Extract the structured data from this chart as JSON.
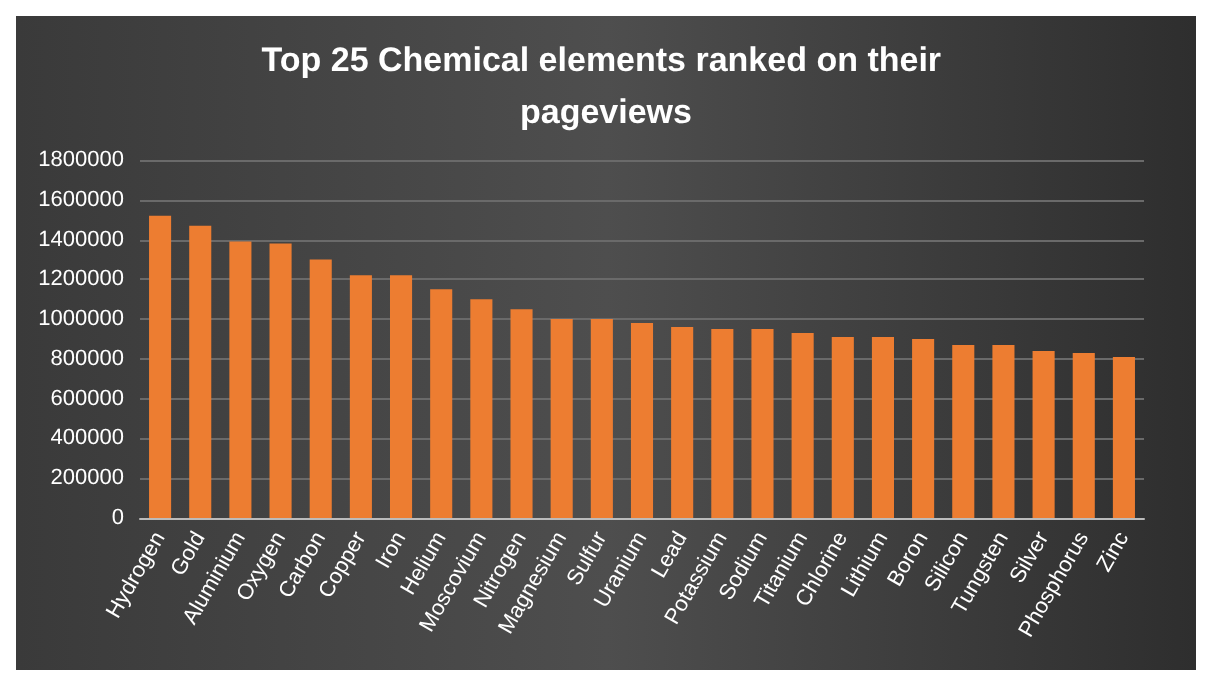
{
  "chart_data": {
    "type": "bar",
    "title": "Top 25 Chemical elements ranked on their pageviews",
    "categories": [
      "Hydrogen",
      "Gold",
      "Aluminium",
      "Oxygen",
      "Carbon",
      "Copper",
      "Iron",
      "Helium",
      "Moscovium",
      "Nitrogen",
      "Magnesium",
      "Sulfur",
      "Uranium",
      "Lead",
      "Potassium",
      "Sodium",
      "Titanium",
      "Chlorine",
      "Lithium",
      "Boron",
      "Silicon",
      "Tungsten",
      "Silver",
      "Phosphorus",
      "Zinc"
    ],
    "values": [
      1520000,
      1470000,
      1390000,
      1380000,
      1300000,
      1220000,
      1220000,
      1150000,
      1100000,
      1050000,
      1000000,
      1000000,
      980000,
      960000,
      950000,
      950000,
      930000,
      910000,
      910000,
      900000,
      870000,
      870000,
      840000,
      830000,
      810000
    ],
    "color": "#ed7d31",
    "ylim": [
      0,
      1800000
    ],
    "yticks": [
      0,
      200000,
      400000,
      600000,
      800000,
      1000000,
      1200000,
      1400000,
      1600000,
      1800000
    ],
    "grid": "y"
  }
}
